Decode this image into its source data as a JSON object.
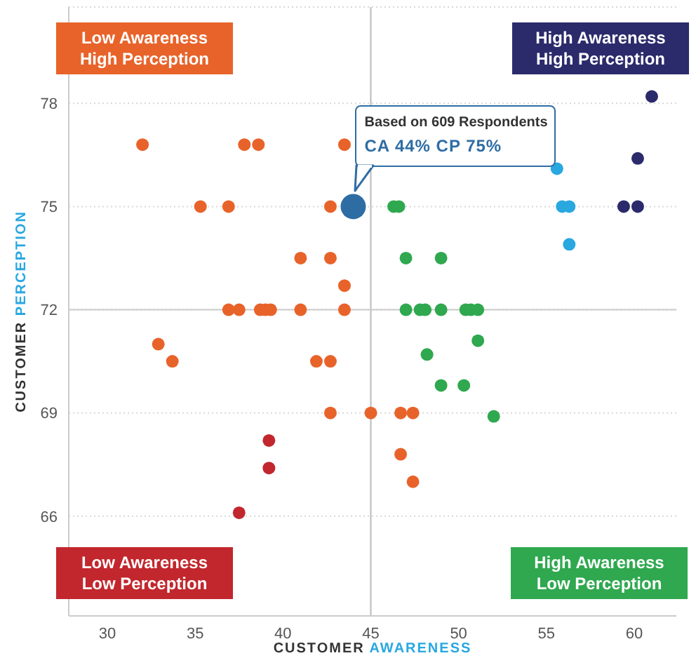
{
  "chart_data": {
    "type": "scatter",
    "xlabel": "CUSTOMER AWARENESS",
    "ylabel": "CUSTOMER PERCEPTION",
    "xlim": [
      27.8,
      62.4
    ],
    "ylim": [
      63.1,
      80.8
    ],
    "xticks": [
      30,
      35,
      40,
      45,
      50,
      55,
      60
    ],
    "yticks": [
      66,
      69,
      72,
      75,
      78
    ],
    "grid": "y",
    "marker": "circle",
    "legend": false,
    "ref_lines": [
      {
        "axis": "x",
        "value": 45,
        "color": "#bbbbbb"
      },
      {
        "axis": "y",
        "value": 72,
        "color": "#cccccc"
      }
    ],
    "annotations": [
      "Low Awareness\nHigh Perception",
      "High Awareness\nHigh Perception",
      "Low Awareness\nLow Perception",
      "High Awareness\nLow Perception",
      "Based on 609 Respondents",
      "CA 44% CP 75%"
    ],
    "series": [
      {
        "color": "#e8632a",
        "x": [
          32.0,
          37.8,
          38.6,
          43.5,
          35.3,
          36.9,
          42.7,
          41.0,
          42.7,
          43.5,
          36.9,
          37.5,
          38.7,
          39.0,
          39.3,
          41.0,
          43.5,
          32.9,
          33.7,
          41.9,
          42.7,
          42.7,
          45.0,
          46.7,
          47.4,
          46.7,
          47.4
        ],
        "values": [
          76.8,
          76.8,
          76.8,
          76.8,
          75,
          75,
          75,
          73.5,
          73.5,
          72.7,
          72,
          72,
          72,
          72,
          72,
          72,
          72,
          71.0,
          70.5,
          70.5,
          70.5,
          69,
          69,
          69,
          69,
          67.8,
          67.0
        ]
      },
      {
        "color": "#2b2a6b",
        "x": [
          61.0,
          60.2,
          59.4,
          60.2
        ],
        "values": [
          78.2,
          76.4,
          75,
          75
        ]
      },
      {
        "color": "#c1272d",
        "x": [
          39.2,
          39.2,
          37.5
        ],
        "values": [
          68.2,
          67.4,
          66.1
        ]
      },
      {
        "color": "#2fa84f",
        "x": [
          46.3,
          46.6,
          47.0,
          49.0,
          47.0,
          47.8,
          48.1,
          49.0,
          50.4,
          50.7,
          51.1,
          51.1,
          48.2,
          49.0,
          50.3,
          52.0
        ],
        "values": [
          75,
          75,
          73.5,
          73.5,
          72,
          72,
          72,
          72,
          72,
          72,
          72,
          71.1,
          70.7,
          69.8,
          69.8,
          68.9
        ]
      },
      {
        "color": "#29a8e0",
        "x": [
          55.6,
          55.9,
          56.3,
          56.3
        ],
        "values": [
          76.1,
          75,
          75,
          73.9
        ]
      },
      {
        "color": "#2e6da4",
        "x": [
          44
        ],
        "values": [
          75
        ]
      }
    ]
  }
}
